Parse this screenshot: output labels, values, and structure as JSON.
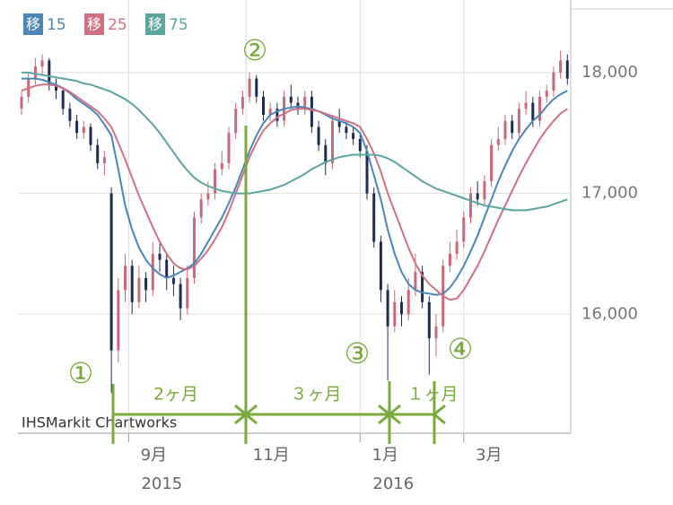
{
  "chart_data": {
    "type": "candlestick",
    "up_color": "#c8687c",
    "down_color": "#1f2d55",
    "ylim": [
      15015,
      18526
    ],
    "yticks": [
      {
        "value": 16000,
        "label": "16,000"
      },
      {
        "value": 17000,
        "label": "17,000"
      },
      {
        "value": 18000,
        "label": "18,000"
      }
    ],
    "xticks": [
      {
        "value": 15.5,
        "label": "9月",
        "year": "2015"
      },
      {
        "value": 32.5,
        "label": "11月"
      },
      {
        "value": 49,
        "label": "1月",
        "year": "2016"
      },
      {
        "value": 64,
        "label": "3月"
      }
    ],
    "grid": true,
    "ma_label": "移",
    "watermark": "IHSMarkit Chartworks",
    "annotations": [
      "①",
      "②",
      "③",
      "④"
    ],
    "periods": [
      "2ヶ月",
      "３ヶ月",
      "１ヶ月"
    ],
    "open": [
      17700,
      17800,
      17950,
      18050,
      18100,
      17900,
      17850,
      17700,
      17600,
      17500,
      17550,
      17400,
      17250,
      17000,
      15700,
      16200,
      16400,
      16100,
      16300,
      16200,
      16500,
      16450,
      16300,
      16250,
      16050,
      16300,
      16800,
      16950,
      17000,
      17200,
      17250,
      17500,
      17700,
      17800,
      17950,
      17800,
      17650,
      17700,
      17600,
      17800,
      17750,
      17700,
      17800,
      17550,
      17400,
      17250,
      17600,
      17550,
      17500,
      17450,
      17350,
      17000,
      16600,
      16200,
      15900,
      16100,
      16000,
      16200,
      16350,
      16100,
      15800,
      15900,
      16400,
      16500,
      16600,
      16800,
      17000,
      16950,
      17100,
      17400,
      17450,
      17600,
      17500,
      17700,
      17750,
      17600,
      17800,
      17850,
      18000,
      18100
    ],
    "high": [
      17850,
      18000,
      18120,
      18150,
      18120,
      17950,
      17880,
      17750,
      17650,
      17600,
      17580,
      17450,
      17350,
      17050,
      16300,
      16500,
      16450,
      16400,
      16350,
      16600,
      16600,
      16500,
      16400,
      16300,
      16400,
      16850,
      17000,
      17100,
      17250,
      17350,
      17550,
      17750,
      17850,
      18000,
      17980,
      17850,
      17750,
      17750,
      17850,
      17900,
      17800,
      17850,
      17850,
      17600,
      17450,
      17650,
      17700,
      17600,
      17550,
      17500,
      17400,
      17050,
      16650,
      16250,
      16200,
      16150,
      16300,
      16500,
      16400,
      16150,
      16000,
      16450,
      16600,
      16700,
      16850,
      17050,
      17100,
      17150,
      17450,
      17550,
      17650,
      17650,
      17750,
      17850,
      17800,
      17850,
      17900,
      18050,
      18180,
      18150
    ],
    "low": [
      17650,
      17750,
      17900,
      17980,
      17850,
      17780,
      17650,
      17550,
      17450,
      17450,
      17350,
      17200,
      17150,
      15350,
      15600,
      16100,
      16000,
      16050,
      16100,
      16150,
      16350,
      16200,
      16150,
      15950,
      16000,
      16250,
      16750,
      16900,
      16950,
      17150,
      17200,
      17450,
      17650,
      17750,
      17750,
      17600,
      17600,
      17550,
      17550,
      17700,
      17650,
      17650,
      17500,
      17350,
      17150,
      17200,
      17500,
      17450,
      17400,
      17300,
      16950,
      16550,
      16100,
      15450,
      15850,
      15900,
      15950,
      16150,
      16050,
      15500,
      15650,
      15850,
      16350,
      16450,
      16550,
      16750,
      16900,
      16900,
      17050,
      17350,
      17400,
      17450,
      17450,
      17650,
      17550,
      17550,
      17750,
      17800,
      17950,
      17900
    ],
    "close": [
      17800,
      17950,
      18050,
      18100,
      17900,
      17850,
      17700,
      17600,
      17500,
      17550,
      17400,
      17250,
      17300,
      15700,
      16200,
      16400,
      16100,
      16300,
      16200,
      16500,
      16450,
      16300,
      16250,
      16050,
      16300,
      16800,
      16950,
      17000,
      17200,
      17250,
      17500,
      17700,
      17800,
      17950,
      17800,
      17650,
      17700,
      17600,
      17800,
      17750,
      17700,
      17800,
      17550,
      17400,
      17250,
      17600,
      17550,
      17500,
      17450,
      17350,
      17000,
      16600,
      16200,
      15900,
      16100,
      16000,
      16200,
      16350,
      16100,
      15800,
      15900,
      16400,
      16500,
      16600,
      16800,
      17000,
      16950,
      17100,
      17400,
      17450,
      17600,
      17500,
      17700,
      17750,
      17600,
      17800,
      17850,
      18000,
      18100,
      17950
    ],
    "series": [
      {
        "name": "15",
        "color": "#4a86b8",
        "values": [
          17950,
          17950,
          17950,
          17940,
          17920,
          17900,
          17870,
          17830,
          17780,
          17740,
          17700,
          17650,
          17570,
          17480,
          17200,
          16900,
          16700,
          16550,
          16450,
          16380,
          16330,
          16300,
          16320,
          16350,
          16380,
          16420,
          16500,
          16600,
          16700,
          16800,
          16920,
          17050,
          17200,
          17350,
          17480,
          17580,
          17650,
          17680,
          17700,
          17710,
          17720,
          17710,
          17700,
          17680,
          17650,
          17620,
          17600,
          17580,
          17550,
          17500,
          17350,
          17150,
          16950,
          16700,
          16500,
          16350,
          16250,
          16200,
          16180,
          16170,
          16160,
          16170,
          16220,
          16300,
          16400,
          16520,
          16650,
          16800,
          16950,
          17100,
          17230,
          17350,
          17450,
          17530,
          17600,
          17650,
          17720,
          17780,
          17820,
          17850
        ]
      },
      {
        "name": "25",
        "color": "#d07080",
        "values": [
          17850,
          17870,
          17890,
          17900,
          17900,
          17890,
          17870,
          17840,
          17800,
          17760,
          17720,
          17680,
          17620,
          17550,
          17420,
          17280,
          17130,
          16980,
          16850,
          16720,
          16600,
          16500,
          16420,
          16380,
          16370,
          16400,
          16460,
          16530,
          16620,
          16720,
          16850,
          17000,
          17150,
          17300,
          17420,
          17520,
          17580,
          17630,
          17660,
          17690,
          17700,
          17700,
          17690,
          17680,
          17660,
          17640,
          17620,
          17600,
          17580,
          17550,
          17450,
          17330,
          17180,
          17000,
          16850,
          16700,
          16550,
          16420,
          16320,
          16250,
          16200,
          16150,
          16120,
          16130,
          16200,
          16300,
          16400,
          16520,
          16650,
          16780,
          16900,
          17020,
          17140,
          17250,
          17350,
          17450,
          17530,
          17600,
          17660,
          17700
        ]
      },
      {
        "name": "75",
        "color": "#5aa5a0",
        "values": [
          18000,
          18000,
          17990,
          17980,
          17970,
          17960,
          17950,
          17940,
          17930,
          17910,
          17900,
          17880,
          17860,
          17840,
          17810,
          17780,
          17740,
          17690,
          17630,
          17570,
          17500,
          17420,
          17340,
          17260,
          17190,
          17130,
          17090,
          17060,
          17040,
          17020,
          17010,
          17000,
          17000,
          17000,
          17010,
          17020,
          17030,
          17050,
          17070,
          17100,
          17130,
          17160,
          17200,
          17230,
          17260,
          17280,
          17300,
          17310,
          17320,
          17320,
          17320,
          17320,
          17310,
          17290,
          17260,
          17220,
          17180,
          17140,
          17100,
          17070,
          17040,
          17020,
          17000,
          16980,
          16960,
          16940,
          16920,
          16900,
          16890,
          16880,
          16870,
          16860,
          16860,
          16860,
          16870,
          16880,
          16890,
          16910,
          16930,
          16950
        ]
      }
    ]
  }
}
